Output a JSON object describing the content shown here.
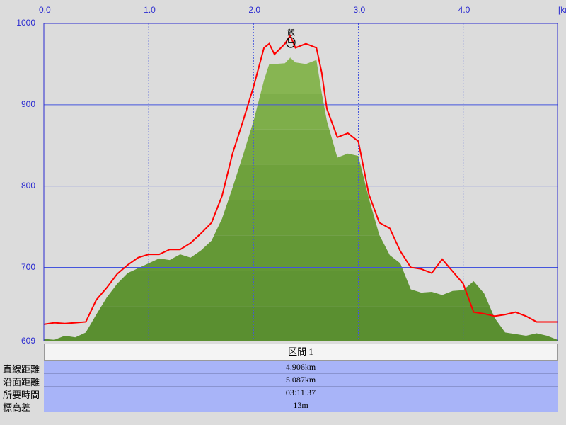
{
  "chart_data": {
    "type": "area",
    "xlabel": "",
    "ylabel": "",
    "x_unit": "[km",
    "xlim": [
      0.0,
      4.9
    ],
    "ylim": [
      609,
      1000
    ],
    "x_ticks": [
      "0.0",
      "1.0",
      "2.0",
      "3.0",
      "4.0"
    ],
    "y_ticks": [
      "1000",
      "900",
      "800",
      "700",
      "609"
    ],
    "grid": true,
    "summit_label": "飯山",
    "colors": {
      "elevation_fill": "#6b9b3a",
      "speed_line": "#ff0000",
      "grid": "#4455dd",
      "plot_bg": "#dcdcdc"
    },
    "series": [
      {
        "kind": "elevation_area",
        "x": [
          0.0,
          0.1,
          0.2,
          0.3,
          0.4,
          0.5,
          0.6,
          0.7,
          0.8,
          0.9,
          1.0,
          1.1,
          1.2,
          1.3,
          1.4,
          1.5,
          1.6,
          1.7,
          1.8,
          1.9,
          2.0,
          2.1,
          2.15,
          2.2,
          2.3,
          2.35,
          2.4,
          2.5,
          2.6,
          2.65,
          2.7,
          2.8,
          2.9,
          3.0,
          3.1,
          3.2,
          3.3,
          3.4,
          3.5,
          3.6,
          3.7,
          3.8,
          3.9,
          4.0,
          4.1,
          4.2,
          4.3,
          4.4,
          4.5,
          4.6,
          4.7,
          4.8,
          4.9
        ],
        "y": [
          612,
          611,
          616,
          614,
          620,
          642,
          663,
          680,
          693,
          699,
          705,
          711,
          709,
          716,
          712,
          721,
          733,
          760,
          798,
          838,
          880,
          930,
          950,
          950,
          951,
          958,
          952,
          950,
          955,
          915,
          880,
          835,
          840,
          837,
          785,
          740,
          715,
          705,
          673,
          669,
          670,
          666,
          671,
          672,
          683,
          668,
          638,
          620,
          618,
          616,
          619,
          616,
          611
        ]
      },
      {
        "kind": "red_line",
        "x": [
          0.0,
          0.1,
          0.2,
          0.3,
          0.4,
          0.5,
          0.6,
          0.7,
          0.8,
          0.9,
          1.0,
          1.1,
          1.2,
          1.3,
          1.4,
          1.5,
          1.6,
          1.7,
          1.8,
          1.9,
          2.0,
          2.1,
          2.15,
          2.2,
          2.3,
          2.35,
          2.4,
          2.5,
          2.6,
          2.65,
          2.7,
          2.8,
          2.9,
          3.0,
          3.1,
          3.2,
          3.3,
          3.4,
          3.5,
          3.6,
          3.7,
          3.8,
          3.9,
          4.0,
          4.1,
          4.2,
          4.3,
          4.4,
          4.5,
          4.6,
          4.7,
          4.8,
          4.9
        ],
        "y": [
          630,
          632,
          631,
          632,
          633,
          660,
          675,
          692,
          703,
          712,
          716,
          716,
          722,
          722,
          730,
          742,
          755,
          788,
          840,
          880,
          922,
          970,
          975,
          962,
          975,
          985,
          970,
          975,
          970,
          940,
          895,
          860,
          865,
          855,
          790,
          755,
          748,
          720,
          700,
          698,
          693,
          710,
          695,
          680,
          645,
          643,
          640,
          642,
          645,
          640,
          633,
          633,
          633
        ]
      }
    ]
  },
  "section": {
    "header": "区間 1",
    "rows": [
      {
        "label": "直線距離",
        "value": "4.906km"
      },
      {
        "label": "沿面距離",
        "value": "5.087km"
      },
      {
        "label": "所要時間",
        "value": "03:11:37"
      },
      {
        "label": "標高差",
        "value": "13m"
      }
    ]
  }
}
